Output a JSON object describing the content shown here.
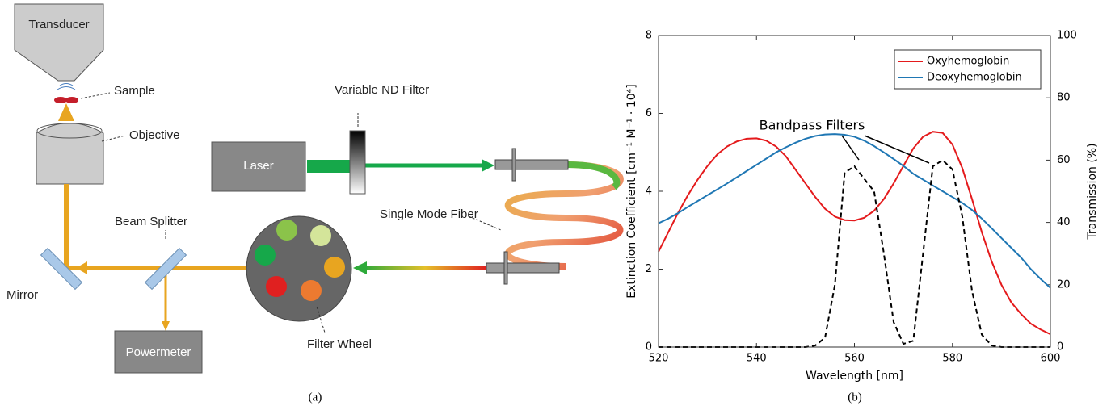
{
  "diagram": {
    "nodes": [
      {
        "label": "Transducer"
      },
      {
        "label": "Sample"
      },
      {
        "label": "Objective"
      },
      {
        "label": "Variable ND Filter"
      },
      {
        "label": "Laser"
      },
      {
        "label": "Single Mode Fiber"
      },
      {
        "label": "Beam Splitter"
      },
      {
        "label": "Mirror"
      },
      {
        "label": "Filter Wheel"
      },
      {
        "label": "Powermeter"
      }
    ]
  },
  "captions": [
    "(a)",
    "(b)"
  ],
  "chart_data": {
    "type": "line",
    "x": [
      520,
      522,
      524,
      526,
      528,
      530,
      532,
      534,
      536,
      538,
      540,
      542,
      544,
      546,
      548,
      550,
      552,
      554,
      556,
      558,
      560,
      562,
      564,
      566,
      568,
      570,
      572,
      574,
      576,
      578,
      580,
      582,
      584,
      586,
      588,
      590,
      592,
      594,
      596,
      598,
      600
    ],
    "series": [
      {
        "name": "Oxyhemoglobin",
        "color": "#e41a1c",
        "values": [
          2.45,
          2.95,
          3.45,
          3.9,
          4.3,
          4.65,
          4.95,
          5.15,
          5.28,
          5.35,
          5.36,
          5.3,
          5.15,
          4.9,
          4.55,
          4.2,
          3.85,
          3.55,
          3.35,
          3.26,
          3.25,
          3.32,
          3.5,
          3.8,
          4.2,
          4.65,
          5.1,
          5.4,
          5.53,
          5.5,
          5.2,
          4.6,
          3.8,
          2.95,
          2.2,
          1.6,
          1.15,
          0.85,
          0.6,
          0.45,
          0.33
        ]
      },
      {
        "name": "Deoxyhemoglobin",
        "color": "#1f77b4",
        "values": [
          3.18,
          3.3,
          3.44,
          3.6,
          3.75,
          3.9,
          4.05,
          4.2,
          4.36,
          4.52,
          4.68,
          4.84,
          5.0,
          5.13,
          5.25,
          5.35,
          5.42,
          5.46,
          5.47,
          5.45,
          5.4,
          5.3,
          5.16,
          5.0,
          4.83,
          4.65,
          4.45,
          4.3,
          4.15,
          4.0,
          3.85,
          3.7,
          3.52,
          3.3,
          3.05,
          2.8,
          2.55,
          2.3,
          2.0,
          1.75,
          1.52
        ]
      },
      {
        "color": "#000000",
        "dash": true,
        "axis": "y2",
        "values": [
          0,
          0,
          0,
          0,
          0,
          0,
          0,
          0,
          0,
          0,
          0,
          0,
          0,
          0,
          0,
          0,
          0.5,
          3,
          20,
          56,
          58,
          54,
          50,
          30,
          8,
          1,
          2,
          30,
          58,
          60,
          57,
          42,
          18,
          4,
          0.5,
          0,
          0,
          0,
          0,
          0,
          0
        ]
      }
    ],
    "xlim": [
      520,
      600
    ],
    "xticks": [
      520,
      540,
      560,
      580,
      600
    ],
    "ylim": [
      0,
      8
    ],
    "yticks": [
      0,
      2,
      4,
      6,
      8
    ],
    "y2lim": [
      0,
      100
    ],
    "y2ticks": [
      0,
      20,
      40,
      60,
      80,
      100
    ],
    "xlabel": "Wavelength [nm]",
    "ylabel": "Extinction Coefficient [cm⁻¹ M⁻¹ · 10⁴]",
    "y2label": "Transmission (%)",
    "annotation": "Bandpass Filters",
    "legend": "upper right",
    "grid": false
  }
}
